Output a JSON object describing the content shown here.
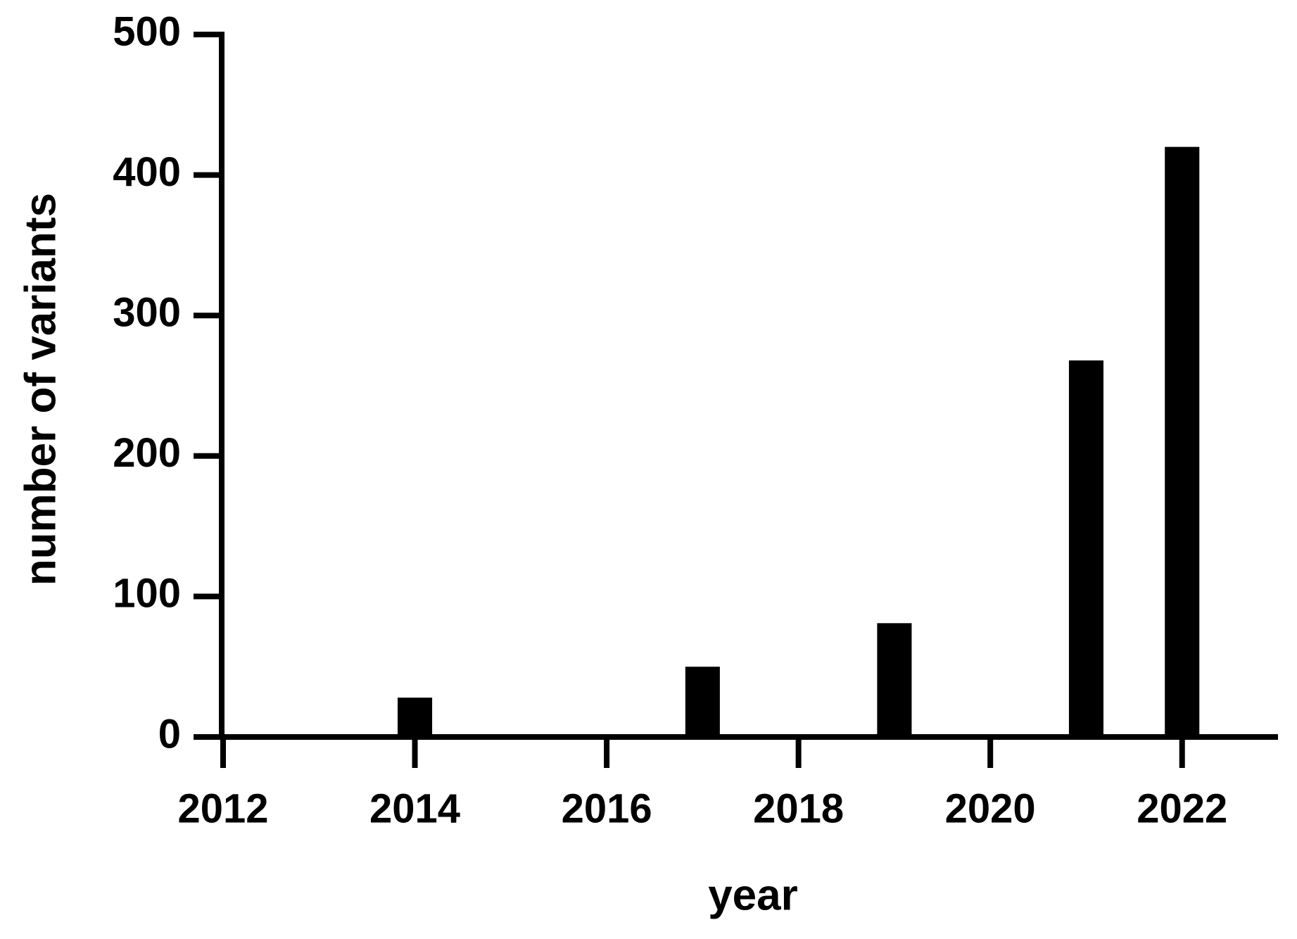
{
  "chart_data": {
    "type": "bar",
    "x_label": "year",
    "y_label": "number of variants",
    "x": [
      2014,
      2017,
      2019,
      2021,
      2022
    ],
    "values": [
      28,
      50,
      81,
      268,
      420
    ],
    "color": "#000000",
    "xlim": [
      2012,
      2023
    ],
    "xticks": [
      2012,
      2014,
      2016,
      2018,
      2020,
      2022
    ],
    "ylim": [
      0,
      500
    ],
    "yticks": [
      0,
      100,
      200,
      300,
      400,
      500
    ],
    "grid": false
  }
}
